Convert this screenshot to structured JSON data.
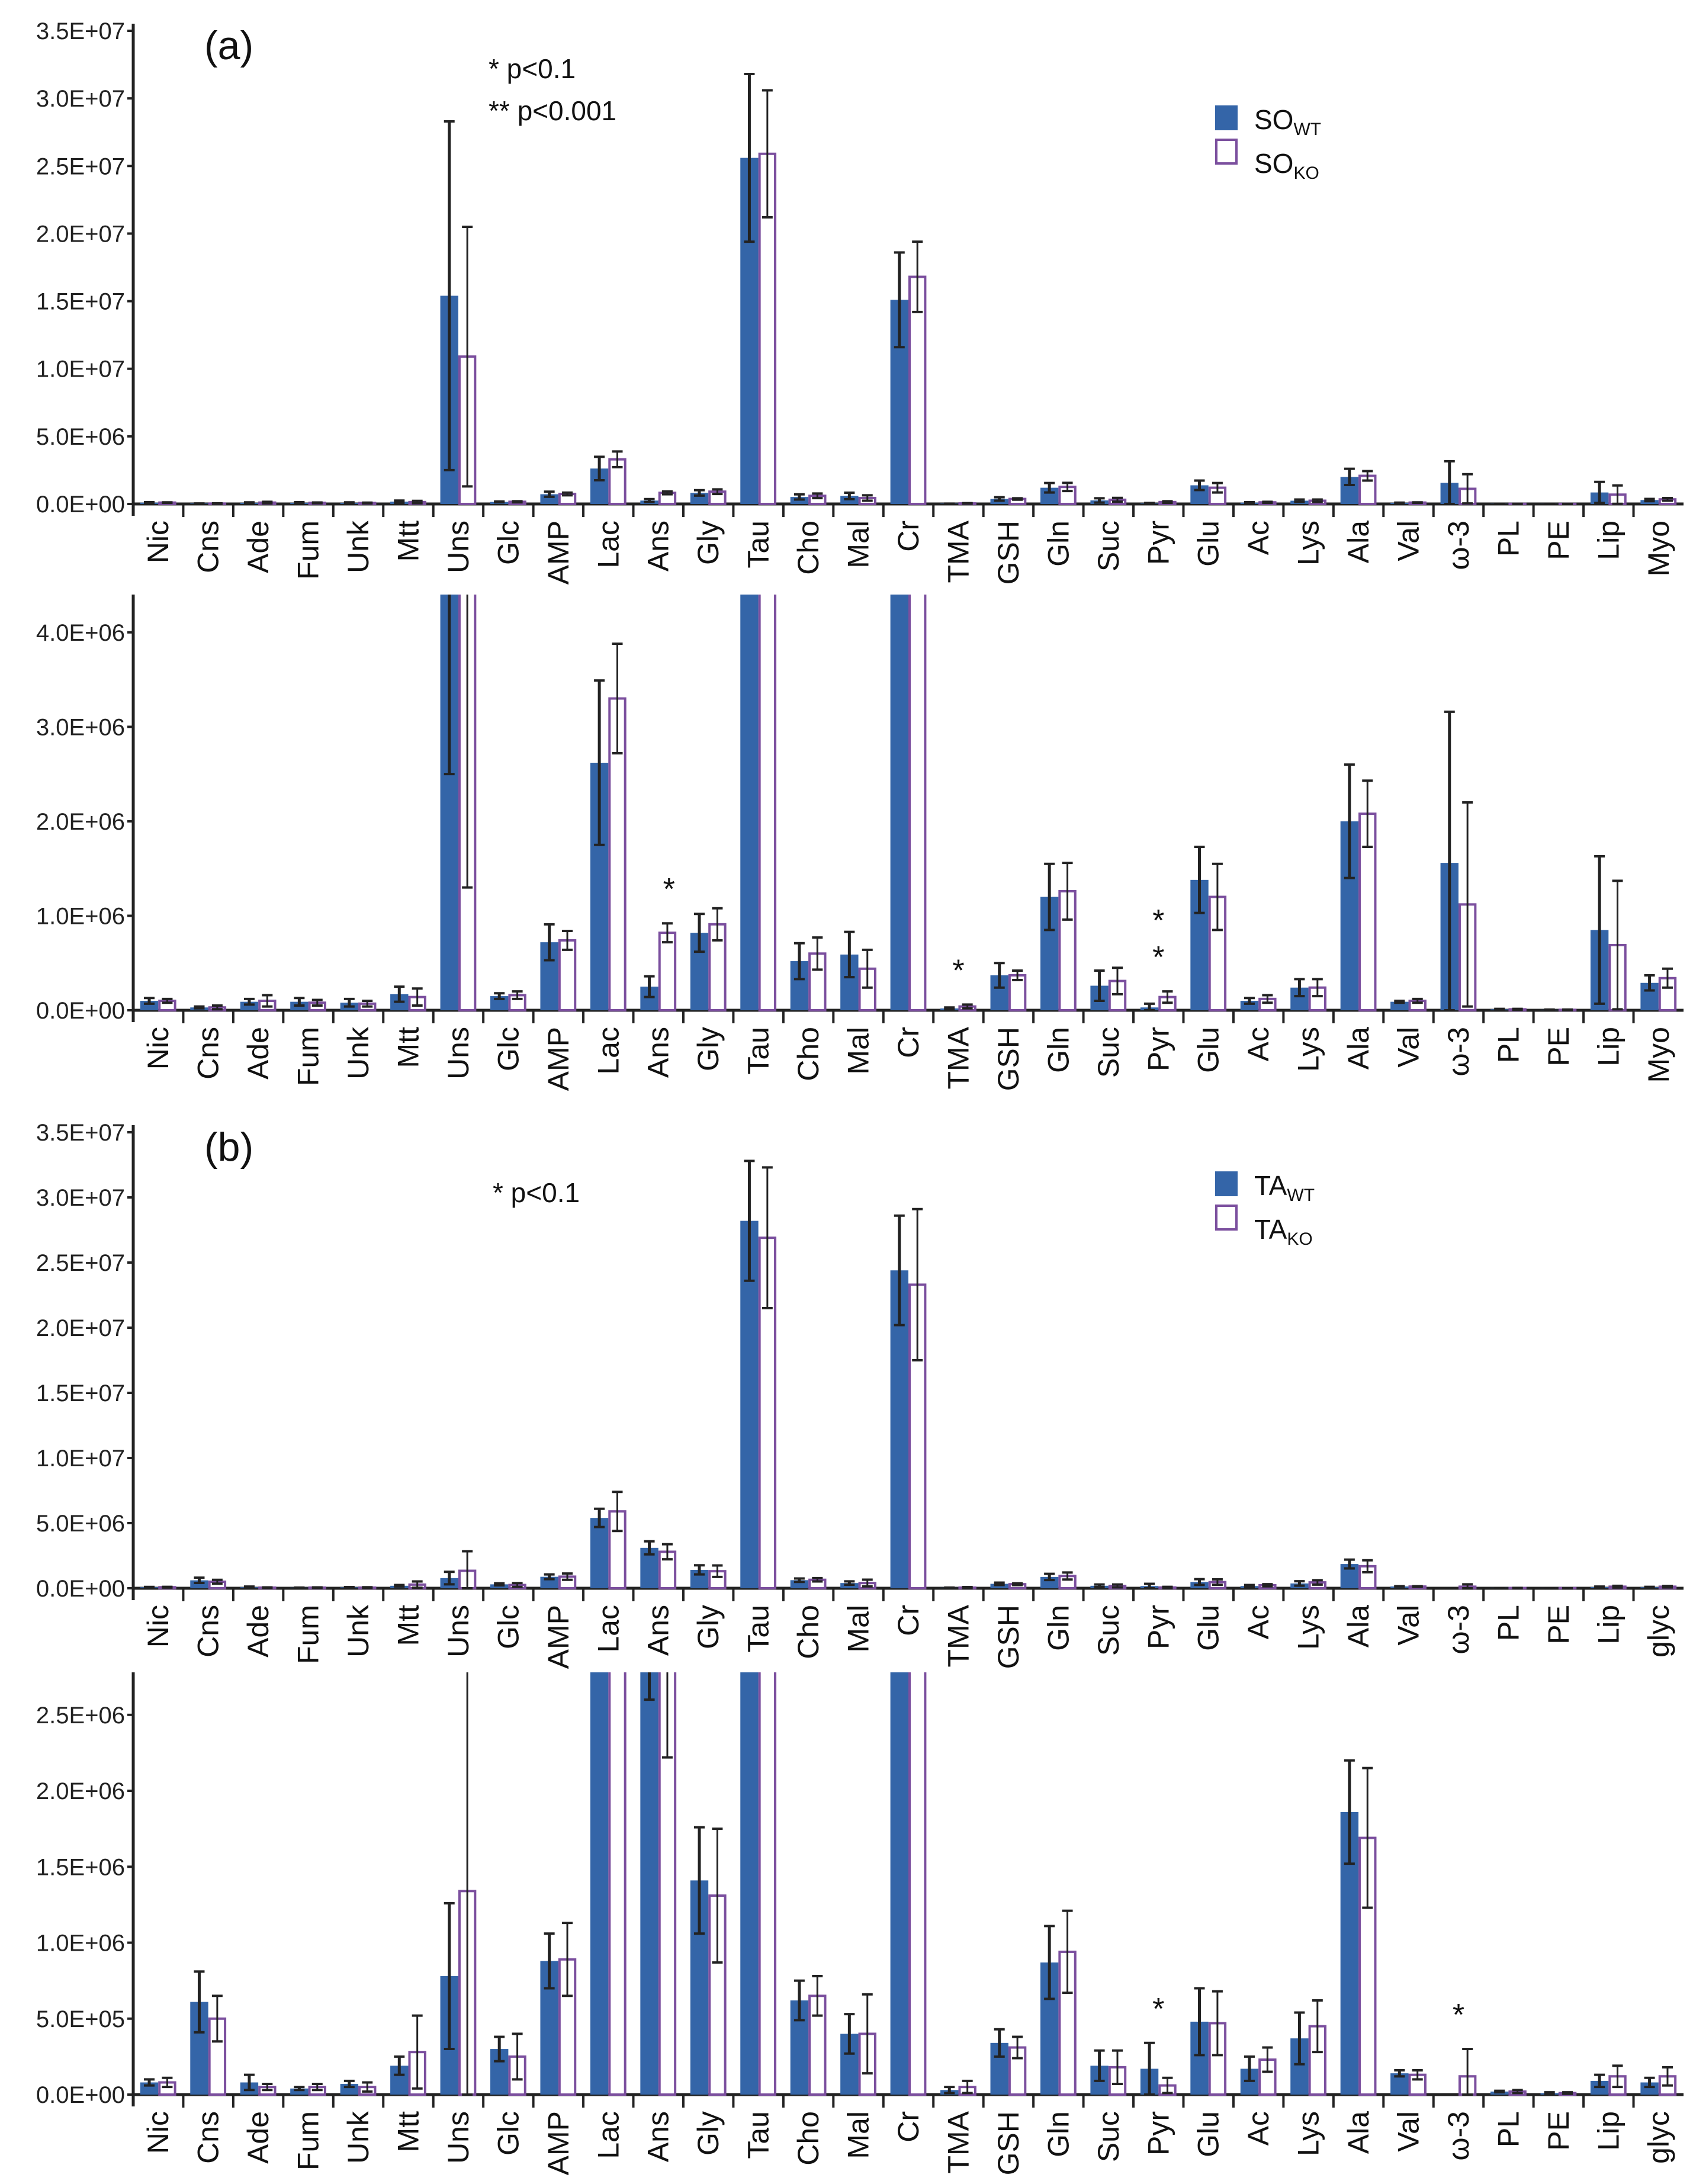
{
  "colors": {
    "wt": "#3465a8",
    "ko_stroke": "#7b4f9e",
    "ko_fill": "#ffffff",
    "error_bar": "#222222"
  },
  "annotations": {
    "a": {
      "label": "(a)",
      "sig1": "* p<0.1",
      "sig2": "** p<0.001",
      "legend": [
        {
          "base": "SO",
          "sub": "WT"
        },
        {
          "base": "SO",
          "sub": "KO"
        }
      ]
    },
    "b": {
      "label": "(b)",
      "sig1": "* p<0.1",
      "legend": [
        {
          "base": "TA",
          "sub": "WT"
        },
        {
          "base": "TA",
          "sub": "KO"
        }
      ]
    }
  },
  "chart_data": [
    {
      "type": "bar",
      "panel": "a",
      "ylim": [
        0,
        35000000
      ],
      "yticks": [
        "0.0E+00",
        "5.0E+06",
        "1.0E+07",
        "1.5E+07",
        "2.0E+07",
        "2.5E+07",
        "3.0E+07",
        "3.5E+07"
      ],
      "ytick_values": [
        0,
        5000000,
        10000000,
        15000000,
        20000000,
        25000000,
        30000000,
        35000000
      ],
      "categories": [
        "Nic",
        "Cns",
        "Ade",
        "Fum",
        "Unk",
        "Mtt",
        "Uns",
        "Glc",
        "AMP",
        "Lac",
        "Ans",
        "Gly",
        "Tau",
        "Cho",
        "Mal",
        "Cr",
        "TMA",
        "GSH",
        "Gln",
        "Suc",
        "Pyr",
        "Glu",
        "Ac",
        "Lys",
        "Ala",
        "Val",
        "ω-3",
        "PL",
        "PE",
        "Lip",
        "Myo"
      ],
      "unit_scale": 1000000,
      "series": [
        {
          "name": "SO_WT",
          "values": [
            0.1,
            0.03,
            0.09,
            0.09,
            0.08,
            0.17,
            15.4,
            0.15,
            0.72,
            2.62,
            0.25,
            0.82,
            25.6,
            0.52,
            0.59,
            15.1,
            0.02,
            0.37,
            1.2,
            0.26,
            0.03,
            1.38,
            0.1,
            0.24,
            2.0,
            0.09,
            1.56,
            0.01,
            0.005,
            0.85,
            0.29
          ],
          "errors": [
            0.03,
            0.01,
            0.03,
            0.04,
            0.04,
            0.08,
            12.9,
            0.03,
            0.19,
            0.87,
            0.11,
            0.2,
            6.2,
            0.19,
            0.24,
            3.5,
            0.01,
            0.13,
            0.35,
            0.16,
            0.04,
            0.35,
            0.03,
            0.09,
            0.6,
            0.01,
            1.6,
            0.005,
            0.003,
            0.78,
            0.08
          ]
        },
        {
          "name": "SO_KO",
          "values": [
            0.1,
            0.03,
            0.1,
            0.08,
            0.07,
            0.14,
            10.9,
            0.16,
            0.74,
            3.3,
            0.82,
            0.91,
            25.9,
            0.6,
            0.44,
            16.8,
            0.04,
            0.37,
            1.26,
            0.31,
            0.14,
            1.2,
            0.12,
            0.24,
            2.08,
            0.1,
            1.12,
            0.01,
            0.005,
            0.69,
            0.34
          ],
          "errors": [
            0.02,
            0.02,
            0.06,
            0.03,
            0.03,
            0.09,
            9.6,
            0.04,
            0.1,
            0.58,
            0.1,
            0.17,
            4.7,
            0.17,
            0.2,
            2.6,
            0.02,
            0.05,
            0.3,
            0.14,
            0.06,
            0.35,
            0.04,
            0.09,
            0.35,
            0.02,
            1.08,
            0.005,
            0.003,
            0.68,
            0.1
          ]
        }
      ],
      "significance": []
    },
    {
      "type": "bar",
      "panel": "a-zoom",
      "ylim": [
        0,
        4400000
      ],
      "yticks": [
        "0.0E+00",
        "1.0E+06",
        "2.0E+06",
        "3.0E+06",
        "4.0E+06"
      ],
      "ytick_values": [
        0,
        1000000,
        2000000,
        3000000,
        4000000
      ],
      "categories": [
        "Nic",
        "Cns",
        "Ade",
        "Fum",
        "Unk",
        "Mtt",
        "Uns",
        "Glc",
        "AMP",
        "Lac",
        "Ans",
        "Gly",
        "Tau",
        "Cho",
        "Mal",
        "Cr",
        "TMA",
        "GSH",
        "Gln",
        "Suc",
        "Pyr",
        "Glu",
        "Ac",
        "Lys",
        "Ala",
        "Val",
        "ω-3",
        "PL",
        "PE",
        "Lip",
        "Myo"
      ],
      "unit_scale": 1000000,
      "series": [
        {
          "name": "SO_WT",
          "values": [
            0.1,
            0.03,
            0.09,
            0.09,
            0.08,
            0.17,
            15.4,
            0.15,
            0.72,
            2.62,
            0.25,
            0.82,
            25.6,
            0.52,
            0.59,
            15.1,
            0.02,
            0.37,
            1.2,
            0.26,
            0.03,
            1.38,
            0.1,
            0.24,
            2.0,
            0.09,
            1.56,
            0.01,
            0.005,
            0.85,
            0.29
          ],
          "errors": [
            0.03,
            0.01,
            0.03,
            0.04,
            0.04,
            0.08,
            12.9,
            0.03,
            0.19,
            0.87,
            0.11,
            0.2,
            6.2,
            0.19,
            0.24,
            3.5,
            0.01,
            0.13,
            0.35,
            0.16,
            0.04,
            0.35,
            0.03,
            0.09,
            0.6,
            0.01,
            1.6,
            0.005,
            0.003,
            0.78,
            0.08
          ]
        },
        {
          "name": "SO_KO",
          "values": [
            0.1,
            0.03,
            0.1,
            0.08,
            0.07,
            0.14,
            10.9,
            0.16,
            0.74,
            3.3,
            0.82,
            0.91,
            25.9,
            0.6,
            0.44,
            16.8,
            0.04,
            0.37,
            1.26,
            0.31,
            0.14,
            1.2,
            0.12,
            0.24,
            2.08,
            0.1,
            1.12,
            0.01,
            0.005,
            0.69,
            0.34
          ],
          "errors": [
            0.02,
            0.02,
            0.06,
            0.03,
            0.03,
            0.09,
            9.6,
            0.04,
            0.1,
            0.58,
            0.1,
            0.17,
            4.7,
            0.17,
            0.2,
            2.6,
            0.02,
            0.05,
            0.3,
            0.14,
            0.06,
            0.35,
            0.04,
            0.09,
            0.35,
            0.02,
            1.08,
            0.005,
            0.003,
            0.68,
            0.1
          ]
        }
      ],
      "significance": [
        {
          "category": "Ans",
          "mark": "*"
        },
        {
          "category": "TMA",
          "mark": "*"
        },
        {
          "category": "Pyr",
          "mark": "**"
        }
      ]
    },
    {
      "type": "bar",
      "panel": "b",
      "ylim": [
        0,
        35000000
      ],
      "yticks": [
        "0.0E+00",
        "5.0E+06",
        "1.0E+07",
        "1.5E+07",
        "2.0E+07",
        "2.5E+07",
        "3.0E+07",
        "3.5E+07"
      ],
      "ytick_values": [
        0,
        5000000,
        10000000,
        15000000,
        20000000,
        25000000,
        30000000,
        35000000
      ],
      "categories": [
        "Nic",
        "Cns",
        "Ade",
        "Fum",
        "Unk",
        "Mtt",
        "Uns",
        "Glc",
        "AMP",
        "Lac",
        "Ans",
        "Gly",
        "Tau",
        "Cho",
        "Mal",
        "Cr",
        "TMA",
        "GSH",
        "Gln",
        "Suc",
        "Pyr",
        "Glu",
        "Ac",
        "Lys",
        "Ala",
        "Val",
        "ω-3",
        "PL",
        "PE",
        "Lip",
        "glyc"
      ],
      "unit_scale": 1000000,
      "series": [
        {
          "name": "TA_WT",
          "values": [
            0.08,
            0.61,
            0.08,
            0.04,
            0.07,
            0.19,
            0.78,
            0.3,
            0.88,
            5.4,
            3.1,
            1.41,
            28.2,
            0.62,
            0.4,
            24.4,
            0.03,
            0.34,
            0.87,
            0.19,
            0.17,
            0.48,
            0.17,
            0.37,
            1.86,
            0.14,
            0.0,
            0.02,
            0.01,
            0.09,
            0.08
          ],
          "errors": [
            0.02,
            0.2,
            0.05,
            0.01,
            0.02,
            0.06,
            0.48,
            0.08,
            0.18,
            0.7,
            0.5,
            0.35,
            4.6,
            0.13,
            0.13,
            4.2,
            0.02,
            0.09,
            0.24,
            0.1,
            0.17,
            0.22,
            0.08,
            0.17,
            0.34,
            0.02,
            0,
            0.005,
            0.005,
            0.04,
            0.03
          ]
        },
        {
          "name": "TA_KO",
          "values": [
            0.08,
            0.5,
            0.05,
            0.05,
            0.05,
            0.28,
            1.34,
            0.25,
            0.89,
            5.9,
            2.8,
            1.31,
            26.9,
            0.65,
            0.4,
            23.3,
            0.05,
            0.31,
            0.94,
            0.18,
            0.06,
            0.47,
            0.23,
            0.45,
            1.69,
            0.13,
            0.12,
            0.02,
            0.01,
            0.12,
            0.12
          ],
          "errors": [
            0.03,
            0.15,
            0.02,
            0.02,
            0.03,
            0.24,
            1.5,
            0.15,
            0.24,
            1.5,
            0.58,
            0.44,
            5.4,
            0.13,
            0.26,
            5.8,
            0.04,
            0.07,
            0.27,
            0.11,
            0.05,
            0.21,
            0.08,
            0.17,
            0.46,
            0.03,
            0.18,
            0.01,
            0.005,
            0.07,
            0.06
          ]
        }
      ],
      "significance": []
    },
    {
      "type": "bar",
      "panel": "b-zoom",
      "ylim": [
        0,
        2780000
      ],
      "yticks": [
        "0.0E+00",
        "5.0E+05",
        "1.0E+06",
        "1.5E+06",
        "2.0E+06",
        "2.5E+06"
      ],
      "ytick_values": [
        0,
        500000,
        1000000,
        1500000,
        2000000,
        2500000
      ],
      "categories": [
        "Nic",
        "Cns",
        "Ade",
        "Fum",
        "Unk",
        "Mtt",
        "Uns",
        "Glc",
        "AMP",
        "Lac",
        "Ans",
        "Gly",
        "Tau",
        "Cho",
        "Mal",
        "Cr",
        "TMA",
        "GSH",
        "Gln",
        "Suc",
        "Pyr",
        "Glu",
        "Ac",
        "Lys",
        "Ala",
        "Val",
        "ω-3",
        "PL",
        "PE",
        "Lip",
        "glyc"
      ],
      "unit_scale": 1000000,
      "series": [
        {
          "name": "TA_WT",
          "values": [
            0.08,
            0.61,
            0.08,
            0.04,
            0.07,
            0.19,
            0.78,
            0.3,
            0.88,
            5.4,
            3.1,
            1.41,
            28.2,
            0.62,
            0.4,
            24.4,
            0.03,
            0.34,
            0.87,
            0.19,
            0.17,
            0.48,
            0.17,
            0.37,
            1.86,
            0.14,
            0.0,
            0.02,
            0.01,
            0.09,
            0.08
          ],
          "errors": [
            0.02,
            0.2,
            0.05,
            0.01,
            0.02,
            0.06,
            0.48,
            0.08,
            0.18,
            0.7,
            0.5,
            0.35,
            4.6,
            0.13,
            0.13,
            4.2,
            0.02,
            0.09,
            0.24,
            0.1,
            0.17,
            0.22,
            0.08,
            0.17,
            0.34,
            0.02,
            0,
            0.005,
            0.005,
            0.04,
            0.03
          ]
        },
        {
          "name": "TA_KO",
          "values": [
            0.08,
            0.5,
            0.05,
            0.05,
            0.05,
            0.28,
            1.34,
            0.25,
            0.89,
            5.9,
            2.8,
            1.31,
            26.9,
            0.65,
            0.4,
            23.3,
            0.05,
            0.31,
            0.94,
            0.18,
            0.06,
            0.47,
            0.23,
            0.45,
            1.69,
            0.13,
            0.12,
            0.02,
            0.01,
            0.12,
            0.12
          ],
          "errors": [
            0.03,
            0.15,
            0.02,
            0.02,
            0.03,
            0.24,
            1.5,
            0.15,
            0.24,
            1.5,
            0.58,
            0.44,
            5.4,
            0.13,
            0.26,
            5.8,
            0.04,
            0.07,
            0.27,
            0.11,
            0.05,
            0.21,
            0.08,
            0.17,
            0.46,
            0.03,
            0.18,
            0.01,
            0.005,
            0.07,
            0.06
          ]
        }
      ],
      "significance": [
        {
          "category": "Pyr",
          "mark": "*"
        },
        {
          "category": "ω-3",
          "mark": "*"
        }
      ]
    }
  ]
}
